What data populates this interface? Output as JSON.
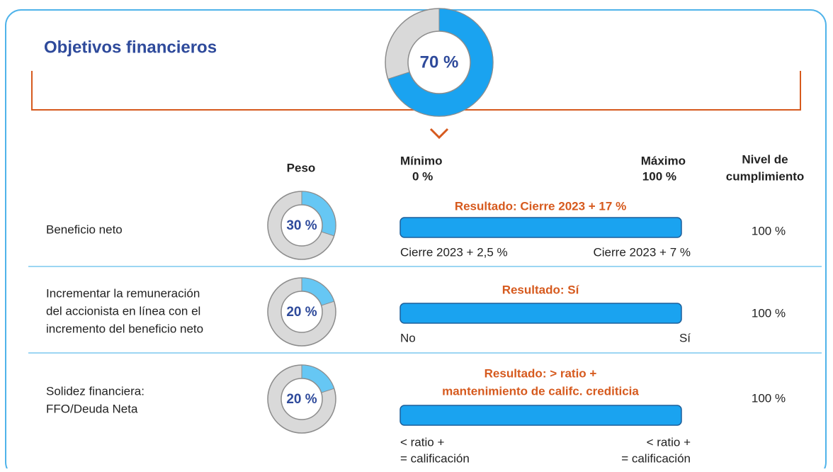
{
  "title": "Objetivos financieros",
  "total": {
    "value": 70,
    "label": "70 %"
  },
  "headers": {
    "weight": "Peso",
    "min": "Mínimo",
    "max": "Máximo",
    "compliance": [
      "Nivel de",
      "cumplimiento"
    ]
  },
  "scale": {
    "min": {
      "value": 0,
      "label": "0 %"
    },
    "max": {
      "value": 100,
      "label": "100 %"
    }
  },
  "rows": [
    {
      "label": [
        "Beneficio neto"
      ],
      "weight": {
        "value": 30,
        "label": "30 %"
      },
      "result": [
        "Resultado: Cierre 2023 + 17 %"
      ],
      "low": [
        "Cierre 2023 + 2,5 %"
      ],
      "high": [
        "Cierre 2023 + 7 %"
      ],
      "compliance": {
        "value": 100,
        "label": "100 %"
      }
    },
    {
      "label": [
        "Incrementar la remuneración",
        "del accionista en línea con el",
        "incremento del beneficio neto"
      ],
      "weight": {
        "value": 20,
        "label": "20 %"
      },
      "result": [
        "Resultado: Sí"
      ],
      "low": [
        "No"
      ],
      "high": [
        "Sí"
      ],
      "compliance": {
        "value": 100,
        "label": "100 %"
      }
    },
    {
      "label": [
        "Solidez financiera:",
        "FFO/Deuda Neta"
      ],
      "weight": {
        "value": 20,
        "label": "20 %"
      },
      "result": [
        "Resultado: > ratio +",
        "mantenimiento de califc. crediticia"
      ],
      "low": [
        "< ratio +",
        "= calificación"
      ],
      "high": [
        "< ratio +",
        "= calificación"
      ],
      "compliance": {
        "value": 100,
        "label": "100 %"
      }
    }
  ]
}
